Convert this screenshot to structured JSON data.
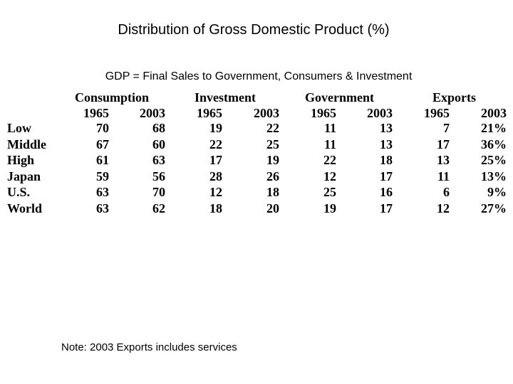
{
  "title": "Distribution of Gross Domestic Product (%)",
  "subtitle": "GDP = Final Sales to Government, Consumers & Investment",
  "note": "Note: 2003 Exports includes services",
  "table": {
    "groups": [
      "Consumption",
      "Investment",
      "Government",
      "Exports"
    ],
    "years": [
      "1965",
      "2003",
      "1965",
      "2003",
      "1965",
      "2003",
      "1965",
      "2003"
    ],
    "rows": [
      {
        "label": "Low",
        "values": [
          "70",
          "68",
          "19",
          "22",
          "11",
          "13",
          "7",
          "21%"
        ]
      },
      {
        "label": "Middle",
        "values": [
          "67",
          "60",
          "22",
          "25",
          "11",
          "13",
          "17",
          "36%"
        ]
      },
      {
        "label": "High",
        "values": [
          "61",
          "63",
          "17",
          "19",
          "22",
          "18",
          "13",
          "25%"
        ]
      },
      {
        "label": "Japan",
        "values": [
          "59",
          "56",
          "28",
          "26",
          "12",
          "17",
          "11",
          "13%"
        ]
      },
      {
        "label": "U.S.",
        "values": [
          "63",
          "70",
          "12",
          "18",
          "25",
          "16",
          "6",
          "9%"
        ]
      },
      {
        "label": "World",
        "values": [
          "63",
          "62",
          "18",
          "20",
          "19",
          "17",
          "12",
          "27%"
        ]
      }
    ]
  }
}
